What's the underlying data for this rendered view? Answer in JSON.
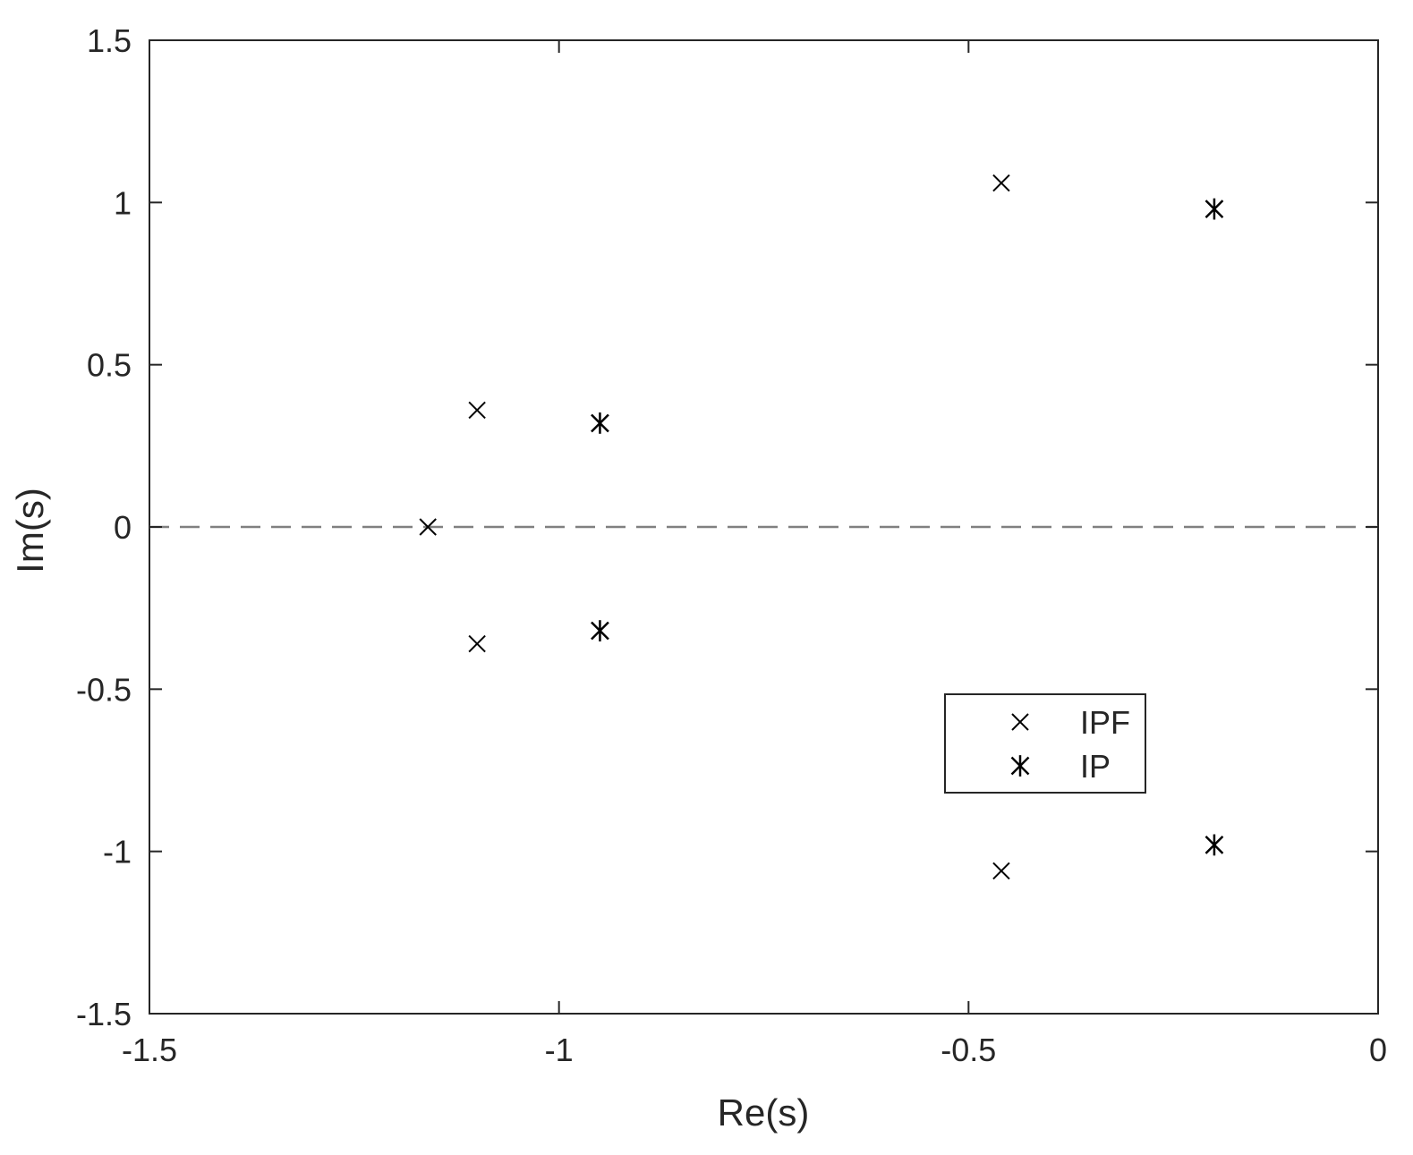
{
  "chart_data": {
    "type": "scatter",
    "xlabel": "Re(s)",
    "ylabel": "Im(s)",
    "xlim": [
      -1.5,
      0
    ],
    "ylim": [
      -1.5,
      1.5
    ],
    "xticks": [
      -1.5,
      -1,
      -0.5,
      0
    ],
    "xtick_labels": [
      "-1.5",
      "-1",
      "-0.5",
      "0"
    ],
    "yticks": [
      -1.5,
      -1,
      -0.5,
      0,
      0.5,
      1,
      1.5
    ],
    "ytick_labels": [
      "-1.5",
      "-1",
      "-0.5",
      "0",
      "0.5",
      "1",
      "1.5"
    ],
    "grid": false,
    "reference_line": {
      "y": 0,
      "style": "dashed",
      "color": "#808080"
    },
    "legend": {
      "position": "lower-right"
    },
    "series": [
      {
        "name": "IPF",
        "marker": "x",
        "color": "#000000",
        "points": [
          {
            "x": -1.16,
            "y": 0.0
          },
          {
            "x": -1.1,
            "y": 0.36
          },
          {
            "x": -1.1,
            "y": -0.36
          },
          {
            "x": -0.46,
            "y": 1.06
          },
          {
            "x": -0.46,
            "y": -1.06
          }
        ]
      },
      {
        "name": "IP",
        "marker": "asterisk",
        "color": "#000000",
        "points": [
          {
            "x": -0.95,
            "y": 0.32
          },
          {
            "x": -0.95,
            "y": -0.32
          },
          {
            "x": -0.2,
            "y": 0.98
          },
          {
            "x": -0.2,
            "y": -0.98
          }
        ]
      }
    ]
  }
}
